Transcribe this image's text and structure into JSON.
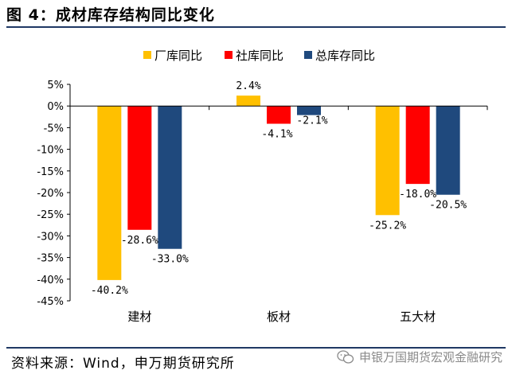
{
  "header": {
    "title": "图 4：成材库存结构同比变化"
  },
  "footer": {
    "source": "资料来源：Wind，申万期货研究所",
    "watermark": "申银万国期货宏观金融研究"
  },
  "chart_data": {
    "type": "bar",
    "categories": [
      "建材",
      "板材",
      "五大材"
    ],
    "series": [
      {
        "name": "厂库同比",
        "color": "#FFC000",
        "values": [
          -40.2,
          2.4,
          -25.2
        ],
        "labels": [
          "-40.2%",
          "2.4%",
          "-25.2%"
        ]
      },
      {
        "name": "社库同比",
        "color": "#FF0000",
        "values": [
          -28.6,
          -4.1,
          -18.0
        ],
        "labels": [
          "-28.6%",
          "-4.1%",
          "-18.0%"
        ]
      },
      {
        "name": "总库存同比",
        "color": "#1F497D",
        "values": [
          -33.0,
          -2.1,
          -20.5
        ],
        "labels": [
          "-33.0%",
          "-2.1%",
          "-20.5%"
        ]
      }
    ],
    "ylim": [
      -45,
      5
    ],
    "yticks": [
      5,
      0,
      -5,
      -10,
      -15,
      -20,
      -25,
      -30,
      -35,
      -40,
      -45
    ],
    "ytick_labels": [
      "5%",
      "0%",
      "-5%",
      "-10%",
      "-15%",
      "-20%",
      "-25%",
      "-30%",
      "-35%",
      "-40%",
      "-45%"
    ],
    "legend": "top-center",
    "grid": false
  }
}
